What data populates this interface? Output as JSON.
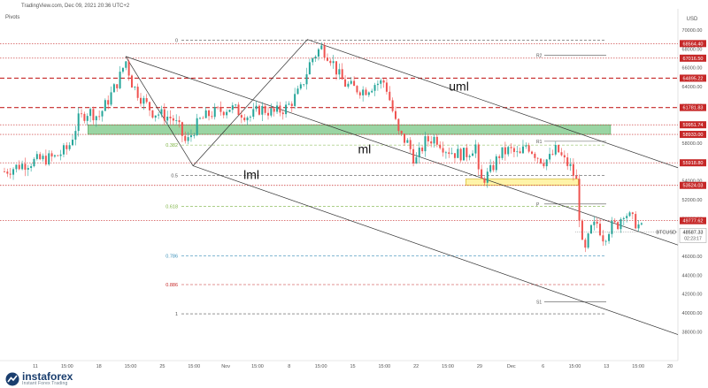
{
  "header": {
    "source": "TradingView.com, Dec 09, 2021 20:36 UTC+2",
    "indicator": "Pivots"
  },
  "branding": {
    "name": "instaforex",
    "tagline": "Instant Forex Trading"
  },
  "colors": {
    "up": "#26a69a",
    "down": "#ef5350",
    "red_level": "#c62828",
    "fib_green": "#7cb342",
    "zone_green": "#90d19a",
    "zone_yellow": "#fff3a0",
    "current_tag": "#ffffff"
  },
  "chart_data": {
    "type": "candlestick",
    "symbol": "BTCUSD",
    "currency_label": "USD",
    "x_ticks": [
      "11",
      "15:00",
      "18",
      "15:00",
      "25",
      "15:00",
      "Nov",
      "15:00",
      "8",
      "15:00",
      "15",
      "15:00",
      "22",
      "15:00",
      "29",
      "Dec",
      "6",
      "15:00",
      "13",
      "15:00",
      "20"
    ],
    "ylim": [
      35500,
      71500
    ],
    "y_ticks": [
      38000,
      40000,
      42000,
      44000,
      46000,
      48000,
      50000,
      52000,
      54000,
      56000,
      58000,
      60000,
      62000,
      64000,
      66000,
      68000,
      70000
    ],
    "price_levels": [
      {
        "value": 68564.4,
        "label": "68564.40",
        "style": "red-dotted"
      },
      {
        "value": 67016.5,
        "label": "67016.50",
        "style": "red-dotted"
      },
      {
        "value": 64895.22,
        "label": "64895.22",
        "style": "red-dashed"
      },
      {
        "value": 61781.83,
        "label": "61781.83",
        "style": "red-dashed"
      },
      {
        "value": 59951.74,
        "label": "59951.74",
        "style": "red-dotted"
      },
      {
        "value": 58933.0,
        "label": "58933.00",
        "style": "red-dotted"
      },
      {
        "value": 55918.8,
        "label": "55918.80",
        "style": "red-dotted"
      },
      {
        "value": 53524.03,
        "label": "53524.03",
        "style": "red-dotted"
      },
      {
        "value": 49777.62,
        "label": "49777.62",
        "style": "red-dotted"
      }
    ],
    "current_price": {
      "value": 48587.33,
      "label": "48587.33",
      "symbol": "BTCUSD",
      "countdown": "02:23:17"
    },
    "fib_levels": [
      {
        "ratio": "0",
        "value": 68900
      },
      {
        "ratio": "0.382",
        "value": 57800
      },
      {
        "ratio": "0.5",
        "value": 54600
      },
      {
        "ratio": "0.618",
        "value": 51300
      },
      {
        "ratio": "0.786",
        "value": 46050
      },
      {
        "ratio": "0.886",
        "value": 43000
      },
      {
        "ratio": "1",
        "value": 39900
      }
    ],
    "pivots": [
      {
        "label": "R2",
        "value": 67350
      },
      {
        "label": "R1",
        "value": 58200
      },
      {
        "label": "P",
        "value": 51550
      },
      {
        "label": "S1",
        "value": 41150
      }
    ],
    "zones": [
      {
        "name": "green-support-zone",
        "from": 58933,
        "to": 59951.74,
        "x_from": 0.124,
        "x_to": 0.9
      },
      {
        "name": "yellow-zone",
        "from": 53524.03,
        "to": 54200,
        "x_from": 0.685,
        "x_to": 0.852
      }
    ],
    "channel_labels": [
      {
        "text": "uml",
        "x": 0.66,
        "y": 63600
      },
      {
        "text": "ml",
        "x": 0.525,
        "y": 56900
      },
      {
        "text": "lml",
        "x": 0.355,
        "y": 54200
      }
    ],
    "channel_lines": [
      {
        "name": "upper-median-line",
        "x1": 0.45,
        "y1": 69000,
        "x2": 1.0,
        "y2": 55400
      },
      {
        "name": "median-line",
        "x1": 0.18,
        "y1": 67200,
        "x2": 1.0,
        "y2": 47200
      },
      {
        "name": "lower-median-line",
        "x1": 0.28,
        "y1": 55600,
        "x2": 1.0,
        "y2": 37700
      },
      {
        "name": "pitchfork-handle-1",
        "x1": 0.28,
        "y1": 55600,
        "x2": 0.45,
        "y2": 69000
      },
      {
        "name": "pitchfork-handle-2",
        "x1": 0.18,
        "y1": 67200,
        "x2": 0.28,
        "y2": 55600
      }
    ],
    "price_path": [
      [
        0.0,
        55000
      ],
      [
        0.025,
        55700
      ],
      [
        0.05,
        56200
      ],
      [
        0.075,
        56500
      ],
      [
        0.095,
        57500
      ],
      [
        0.11,
        60500
      ],
      [
        0.125,
        61400
      ],
      [
        0.14,
        60800
      ],
      [
        0.155,
        62700
      ],
      [
        0.17,
        64800
      ],
      [
        0.18,
        66800
      ],
      [
        0.19,
        64200
      ],
      [
        0.205,
        62600
      ],
      [
        0.22,
        61300
      ],
      [
        0.235,
        61000
      ],
      [
        0.25,
        60600
      ],
      [
        0.26,
        59500
      ],
      [
        0.27,
        57900
      ],
      [
        0.28,
        59300
      ],
      [
        0.29,
        60400
      ],
      [
        0.305,
        61100
      ],
      [
        0.32,
        61400
      ],
      [
        0.335,
        61800
      ],
      [
        0.35,
        61300
      ],
      [
        0.365,
        60800
      ],
      [
        0.38,
        61700
      ],
      [
        0.4,
        61200
      ],
      [
        0.42,
        61800
      ],
      [
        0.44,
        63700
      ],
      [
        0.455,
        66800
      ],
      [
        0.47,
        68200
      ],
      [
        0.485,
        67000
      ],
      [
        0.495,
        65400
      ],
      [
        0.505,
        64300
      ],
      [
        0.52,
        63800
      ],
      [
        0.535,
        63600
      ],
      [
        0.55,
        64300
      ],
      [
        0.565,
        64500
      ],
      [
        0.575,
        61800
      ],
      [
        0.585,
        59000
      ],
      [
        0.6,
        57900
      ],
      [
        0.61,
        56000
      ],
      [
        0.625,
        58200
      ],
      [
        0.64,
        58600
      ],
      [
        0.655,
        57400
      ],
      [
        0.67,
        56900
      ],
      [
        0.685,
        56800
      ],
      [
        0.7,
        57800
      ],
      [
        0.705,
        53800
      ],
      [
        0.72,
        54800
      ],
      [
        0.735,
        56800
      ],
      [
        0.75,
        57300
      ],
      [
        0.765,
        56600
      ],
      [
        0.775,
        57900
      ],
      [
        0.79,
        56700
      ],
      [
        0.8,
        56100
      ],
      [
        0.81,
        56400
      ],
      [
        0.82,
        57400
      ],
      [
        0.83,
        56200
      ],
      [
        0.84,
        55500
      ],
      [
        0.85,
        53800
      ],
      [
        0.855,
        49000
      ],
      [
        0.86,
        45800
      ],
      [
        0.87,
        48800
      ],
      [
        0.88,
        49500
      ],
      [
        0.89,
        47900
      ],
      [
        0.9,
        49200
      ],
      [
        0.91,
        49300
      ],
      [
        0.92,
        50800
      ],
      [
        0.93,
        50000
      ],
      [
        0.94,
        49400
      ],
      [
        0.95,
        48600
      ]
    ]
  }
}
